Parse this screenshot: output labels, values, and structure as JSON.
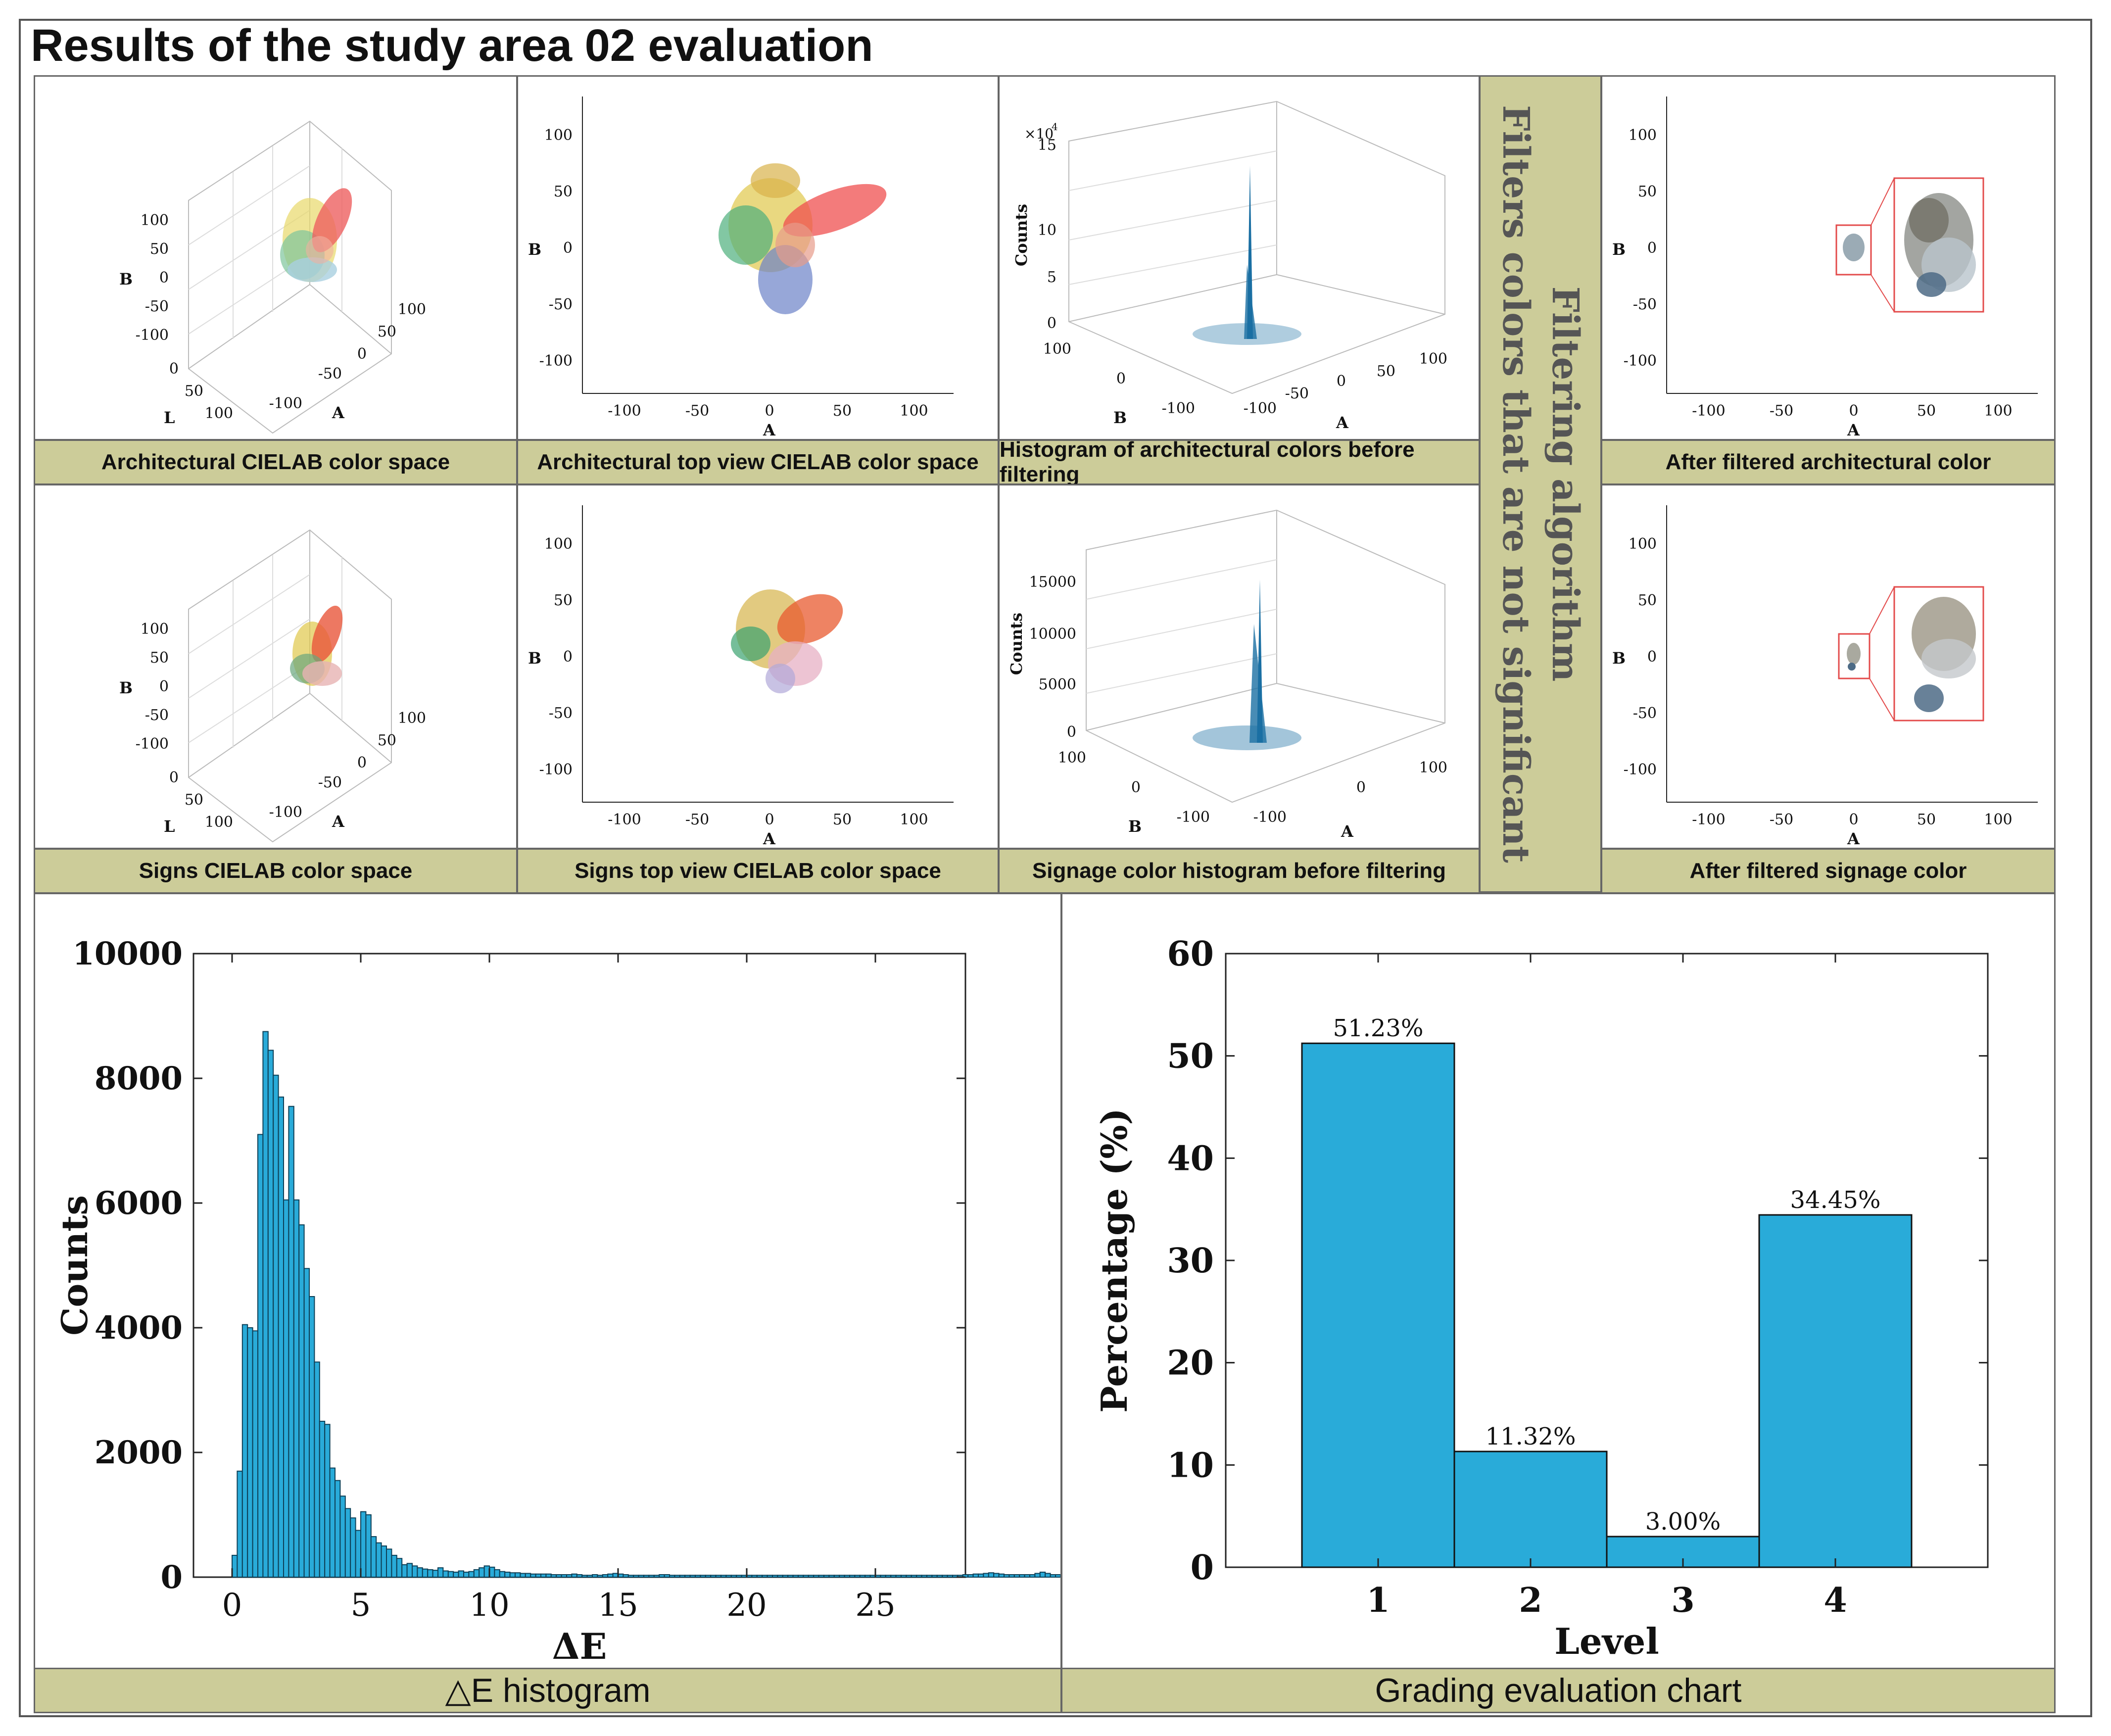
{
  "title": "Results of the study area 02 evaluation",
  "captions": {
    "arch_cielab": "Architectural CIELAB color space",
    "arch_top": "Architectural top view CIELAB color space",
    "arch_hist": "Histogram of architectural colors before filtering",
    "arch_filtered": "After filtered architectural color",
    "signs_cielab": "Signs CIELAB color space",
    "signs_top": "Signs top view CIELAB color space",
    "signs_hist": "Signage color histogram before filtering",
    "signs_filtered": "After filtered signage color",
    "de_hist": "△E histogram",
    "grading": "Grading evaluation chart"
  },
  "filter_label": {
    "line1": "Filtering algorithm",
    "line2": "Filters colors that are not significant"
  },
  "colors": {
    "caption_bg": "#cccc99",
    "bar_fill": "#29abd9",
    "hist_blue": "#1a6fa3",
    "highlight_red": "#e34b4b"
  },
  "small_plots": {
    "axis_A": "A",
    "axis_B": "B",
    "axis_L": "L",
    "axis_counts": "Counts",
    "ticks_ab": [
      "100",
      "50",
      "0",
      "-50",
      "-100"
    ],
    "ticks_a_x": [
      "-100",
      "-50",
      "0",
      "50",
      "100"
    ],
    "ticks_3d_B": [
      "100",
      "50",
      "0",
      "-50",
      "-100"
    ],
    "ticks_3d_L": [
      "0",
      "50",
      "100"
    ],
    "ticks_3d_A": [
      "-100",
      "-50",
      "0",
      "50",
      "100"
    ],
    "arch_hist_yticks": [
      "15",
      "10",
      "5",
      "0"
    ],
    "arch_hist_exp": "×10",
    "arch_hist_exp_power": "4",
    "signs_hist_yticks": [
      "15000",
      "10000",
      "5000",
      "0"
    ],
    "hist_B_ticks": [
      "100",
      "0",
      "-100"
    ],
    "hist_A_ticks": [
      "-100",
      "0",
      "100"
    ],
    "hist_A_mid_ticks": [
      "-100",
      "-50",
      "0",
      "50",
      "100"
    ]
  },
  "chart_data": [
    {
      "type": "bar",
      "title": "",
      "xlabel": "ΔE",
      "ylabel": "Counts",
      "xlim": [
        -1.5,
        28.5
      ],
      "ylim": [
        0,
        10000
      ],
      "xticks": [
        "0",
        "5",
        "10",
        "15",
        "20",
        "25"
      ],
      "yticks": [
        "0",
        "2000",
        "4000",
        "6000",
        "8000",
        "10000"
      ],
      "bin_width": 0.2,
      "bin_start": 0,
      "values": [
        350,
        1700,
        4050,
        4000,
        3950,
        7100,
        8750,
        8450,
        8050,
        7700,
        6050,
        7550,
        6050,
        5650,
        4950,
        4500,
        3450,
        2500,
        2450,
        1750,
        1550,
        1300,
        1100,
        950,
        750,
        1050,
        1000,
        650,
        550,
        500,
        450,
        350,
        300,
        200,
        220,
        180,
        150,
        130,
        120,
        110,
        150,
        100,
        90,
        80,
        100,
        80,
        90,
        120,
        150,
        180,
        160,
        120,
        90,
        80,
        70,
        70,
        60,
        60,
        50,
        50,
        50,
        50,
        40,
        40,
        40,
        40,
        50,
        40,
        30,
        30,
        40,
        30,
        40,
        50,
        60,
        50,
        40,
        30,
        30,
        30,
        30,
        30,
        30,
        40,
        40,
        30,
        30,
        30,
        30,
        30,
        30,
        30,
        30,
        30,
        30,
        30,
        30,
        30,
        30,
        30,
        30,
        30,
        30,
        30,
        30,
        30,
        30,
        30,
        30,
        30,
        30,
        30,
        30,
        30,
        30,
        30,
        30,
        30,
        30,
        30,
        30,
        30,
        30,
        30,
        30,
        30,
        30,
        30,
        30,
        30,
        30,
        30,
        30,
        30,
        30,
        30,
        30,
        30,
        30,
        30,
        30,
        30,
        40,
        40,
        50,
        50,
        60,
        70,
        60,
        50,
        40,
        40,
        40,
        40,
        40,
        40,
        60,
        80,
        60,
        40,
        40
      ]
    },
    {
      "type": "bar",
      "title": "",
      "xlabel": "Level",
      "ylabel": "Percentage (%)",
      "ylim": [
        0,
        60
      ],
      "categories": [
        "1",
        "2",
        "3",
        "4"
      ],
      "values": [
        51.23,
        11.32,
        3.0,
        34.45
      ],
      "data_labels": [
        "51.23%",
        "11.32%",
        "3.00%",
        "34.45%"
      ],
      "yticks": [
        "0",
        "10",
        "20",
        "30",
        "40",
        "50",
        "60"
      ]
    }
  ]
}
